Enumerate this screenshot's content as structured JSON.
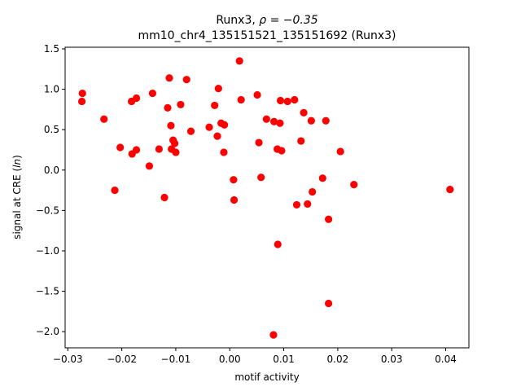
{
  "chart_data": {
    "type": "scatter",
    "title_gene": "Runx3, ",
    "title_rho": "ρ = −0.35",
    "subtitle": "mm10_chr4_135151521_135151692 (Runx3)",
    "xlabel": "motif activity",
    "ylabel": "signal at CRE (",
    "ylabel_italic": "ln",
    "ylabel_end": ")",
    "xlim": [
      -0.0305,
      0.0443
    ],
    "ylim": [
      -2.2,
      1.52
    ],
    "xticks": [
      -0.03,
      -0.02,
      -0.01,
      0.0,
      0.01,
      0.02,
      0.03,
      0.04
    ],
    "xtick_labels": [
      "−0.03",
      "−0.02",
      "−0.01",
      "0.00",
      "0.01",
      "0.02",
      "0.03",
      "0.04"
    ],
    "yticks": [
      -2.0,
      -1.5,
      -1.0,
      -0.5,
      0.0,
      0.5,
      1.0,
      1.5
    ],
    "ytick_labels": [
      "−2.0",
      "−1.5",
      "−1.0",
      "−0.5",
      "0.0",
      "0.5",
      "1.0",
      "1.5"
    ],
    "marker_color": "#ff0000",
    "grid": false,
    "points": [
      {
        "x": -0.0273,
        "y": 0.95
      },
      {
        "x": -0.0274,
        "y": 0.85
      },
      {
        "x": -0.0233,
        "y": 0.63
      },
      {
        "x": -0.0213,
        "y": -0.25
      },
      {
        "x": -0.0203,
        "y": 0.28
      },
      {
        "x": -0.0182,
        "y": 0.85
      },
      {
        "x": -0.0181,
        "y": 0.2
      },
      {
        "x": -0.0173,
        "y": 0.89
      },
      {
        "x": -0.0173,
        "y": 0.25
      },
      {
        "x": -0.0149,
        "y": 0.05
      },
      {
        "x": -0.0143,
        "y": 0.95
      },
      {
        "x": -0.0131,
        "y": 0.26
      },
      {
        "x": -0.0121,
        "y": -0.34
      },
      {
        "x": -0.0115,
        "y": 0.77
      },
      {
        "x": -0.0112,
        "y": 1.14
      },
      {
        "x": -0.0109,
        "y": 0.55
      },
      {
        "x": -0.0108,
        "y": 0.26
      },
      {
        "x": -0.0105,
        "y": 0.37
      },
      {
        "x": -0.0102,
        "y": 0.33
      },
      {
        "x": -0.01,
        "y": 0.22
      },
      {
        "x": -0.0091,
        "y": 0.81
      },
      {
        "x": -0.008,
        "y": 1.12
      },
      {
        "x": -0.0072,
        "y": 0.48
      },
      {
        "x": -0.0038,
        "y": 0.53
      },
      {
        "x": -0.0028,
        "y": 0.8
      },
      {
        "x": -0.0023,
        "y": 0.42
      },
      {
        "x": -0.0021,
        "y": 1.01
      },
      {
        "x": -0.0016,
        "y": 0.58
      },
      {
        "x": -0.001,
        "y": 0.56
      },
      {
        "x": -0.0011,
        "y": 0.22
      },
      {
        "x": 0.0007,
        "y": -0.12
      },
      {
        "x": 0.0008,
        "y": -0.37
      },
      {
        "x": 0.0018,
        "y": 1.35
      },
      {
        "x": 0.0021,
        "y": 0.87
      },
      {
        "x": 0.0051,
        "y": 0.93
      },
      {
        "x": 0.0054,
        "y": 0.34
      },
      {
        "x": 0.0058,
        "y": -0.09
      },
      {
        "x": 0.0068,
        "y": 0.63
      },
      {
        "x": 0.0082,
        "y": 0.6
      },
      {
        "x": 0.0088,
        "y": 0.26
      },
      {
        "x": 0.0089,
        "y": -0.92
      },
      {
        "x": 0.0093,
        "y": 0.58
      },
      {
        "x": 0.0094,
        "y": 0.86
      },
      {
        "x": 0.0096,
        "y": 0.24
      },
      {
        "x": 0.0107,
        "y": 0.85
      },
      {
        "x": 0.012,
        "y": 0.87
      },
      {
        "x": 0.0124,
        "y": -0.43
      },
      {
        "x": 0.0132,
        "y": 0.36
      },
      {
        "x": 0.0137,
        "y": 0.71
      },
      {
        "x": 0.0144,
        "y": -0.42
      },
      {
        "x": 0.0151,
        "y": 0.61
      },
      {
        "x": 0.0153,
        "y": -0.27
      },
      {
        "x": 0.0172,
        "y": -0.1
      },
      {
        "x": 0.0178,
        "y": 0.61
      },
      {
        "x": 0.0183,
        "y": -0.61
      },
      {
        "x": 0.0183,
        "y": -1.65
      },
      {
        "x": 0.0205,
        "y": 0.23
      },
      {
        "x": 0.023,
        "y": -0.18
      },
      {
        "x": 0.0081,
        "y": -2.04
      },
      {
        "x": 0.0408,
        "y": -0.24
      }
    ]
  }
}
